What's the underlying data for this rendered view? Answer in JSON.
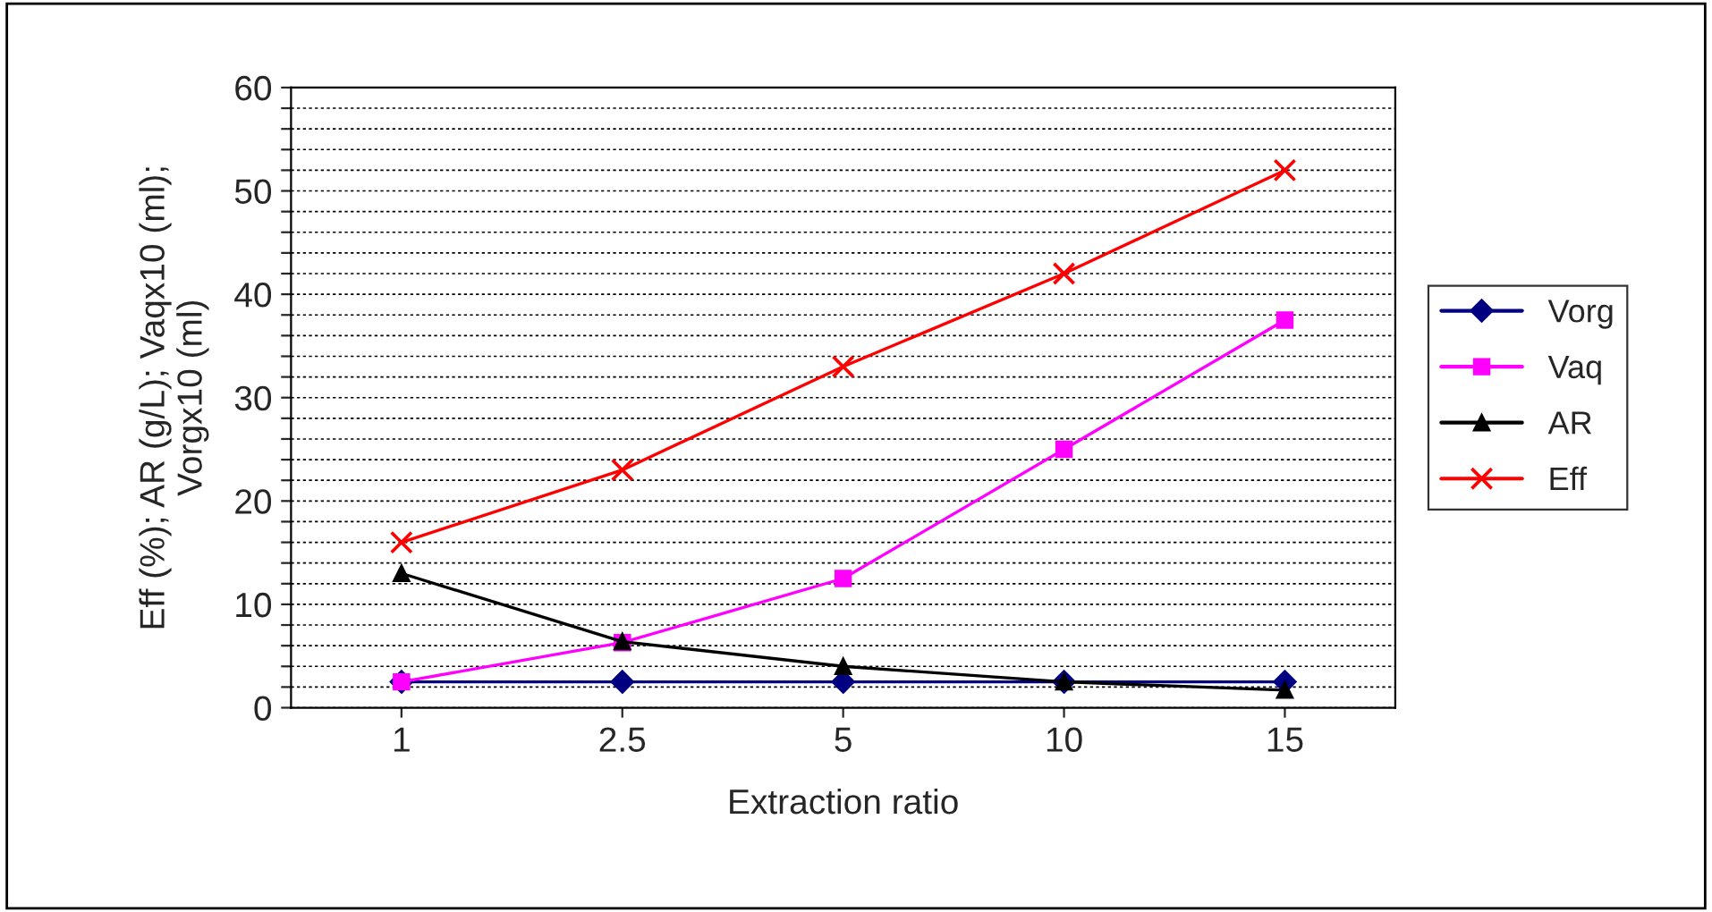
{
  "chart_data": {
    "type": "line",
    "xlabel": "Extraction ratio",
    "ylabel": "Eff (%); AR (g/L); Vaqx10 (ml);\nVorgx10 (ml)",
    "categories": [
      "1",
      "2.5",
      "5",
      "10",
      "15"
    ],
    "series": [
      {
        "name": "Vorg",
        "color": "#000080",
        "marker": "diamond",
        "values": [
          2.5,
          2.5,
          2.5,
          2.5,
          2.5
        ]
      },
      {
        "name": "Vaq",
        "color": "#ff00ff",
        "marker": "square",
        "values": [
          2.5,
          6.3,
          12.5,
          25,
          37.5
        ]
      },
      {
        "name": "AR",
        "color": "#000000",
        "marker": "triangle",
        "values": [
          13,
          6.4,
          4,
          2.5,
          1.7
        ]
      },
      {
        "name": "Eff",
        "color": "#ff0000",
        "marker": "cross",
        "values": [
          16,
          23,
          33,
          42,
          52
        ]
      }
    ],
    "ylim": [
      0,
      60
    ],
    "yticks": [
      0,
      {
        "value": 2,
        "label": null
      },
      {
        "value": 4,
        "label": null
      },
      {
        "value": 6,
        "label": null
      },
      {
        "value": 8,
        "label": null
      },
      10,
      {
        "value": 12,
        "label": null
      },
      {
        "value": 14,
        "label": null
      },
      {
        "value": 16,
        "label": null
      },
      {
        "value": 18,
        "label": null
      },
      20,
      {
        "value": 22,
        "label": null
      },
      {
        "value": 24,
        "label": null
      },
      {
        "value": 26,
        "label": null
      },
      {
        "value": 28,
        "label": null
      },
      30,
      {
        "value": 32,
        "label": null
      },
      {
        "value": 34,
        "label": null
      },
      {
        "value": 36,
        "label": null
      },
      {
        "value": 38,
        "label": null
      },
      40,
      {
        "value": 42,
        "label": null
      },
      {
        "value": 44,
        "label": null
      },
      {
        "value": 46,
        "label": null
      },
      {
        "value": 48,
        "label": null
      },
      50,
      {
        "value": 52,
        "label": null
      },
      {
        "value": 54,
        "label": null
      },
      {
        "value": 56,
        "label": null
      },
      {
        "value": 58,
        "label": null
      },
      60
    ],
    "grid": "y",
    "legend": "right",
    "line_style": "solid"
  }
}
